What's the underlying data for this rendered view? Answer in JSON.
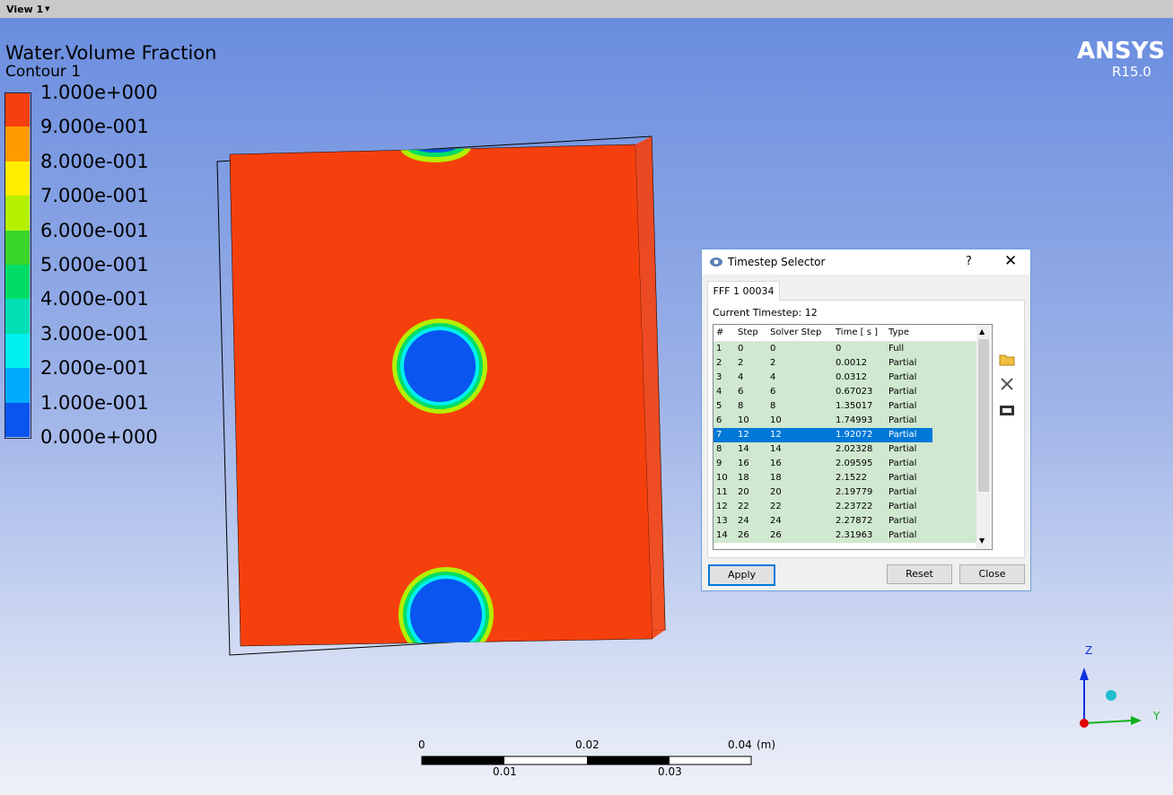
{
  "view_tab": "View 1",
  "legend": {
    "title": "Water.Volume Fraction",
    "subtitle": "Contour 1",
    "labels": [
      "1.000e+000",
      "9.000e-001",
      "8.000e-001",
      "7.000e-001",
      "6.000e-001",
      "5.000e-001",
      "4.000e-001",
      "3.000e-001",
      "2.000e-001",
      "1.000e-001",
      "0.000e+000"
    ],
    "colors": [
      "#f5400d",
      "#ff9a00",
      "#ffee00",
      "#b4f000",
      "#3ad62a",
      "#00dd66",
      "#00e0b4",
      "#00f0f0",
      "#00aaff",
      "#0a55f0"
    ]
  },
  "brand": {
    "name": "ANSYS",
    "version": "R15.0"
  },
  "dialog": {
    "title": "Timestep Selector",
    "help": "?",
    "tab": "FFF 1 00034",
    "current": "Current Timestep: 12",
    "columns": [
      "#",
      "Step",
      "Solver Step",
      "Time [ s ]",
      "Type"
    ],
    "rows": [
      [
        "1",
        "0",
        "0",
        "0",
        "Full"
      ],
      [
        "2",
        "2",
        "2",
        "0.0012",
        "Partial"
      ],
      [
        "3",
        "4",
        "4",
        "0.0312",
        "Partial"
      ],
      [
        "4",
        "6",
        "6",
        "0.67023",
        "Partial"
      ],
      [
        "5",
        "8",
        "8",
        "1.35017",
        "Partial"
      ],
      [
        "6",
        "10",
        "10",
        "1.74993",
        "Partial"
      ],
      [
        "7",
        "12",
        "12",
        "1.92072",
        "Partial"
      ],
      [
        "8",
        "14",
        "14",
        "2.02328",
        "Partial"
      ],
      [
        "9",
        "16",
        "16",
        "2.09595",
        "Partial"
      ],
      [
        "10",
        "18",
        "18",
        "2.1522",
        "Partial"
      ],
      [
        "11",
        "20",
        "20",
        "2.19779",
        "Partial"
      ],
      [
        "12",
        "22",
        "22",
        "2.23722",
        "Partial"
      ],
      [
        "13",
        "24",
        "24",
        "2.27872",
        "Partial"
      ],
      [
        "14",
        "26",
        "26",
        "2.31963",
        "Partial"
      ]
    ],
    "selected_row": 6,
    "buttons": [
      "Apply",
      "Reset",
      "Close"
    ]
  },
  "scale": {
    "top": [
      "0",
      "0.02",
      "0.04",
      "(m)"
    ],
    "bottom": [
      "0.01",
      "0.03"
    ]
  },
  "axes": {
    "z": "Z",
    "y": "Y"
  }
}
